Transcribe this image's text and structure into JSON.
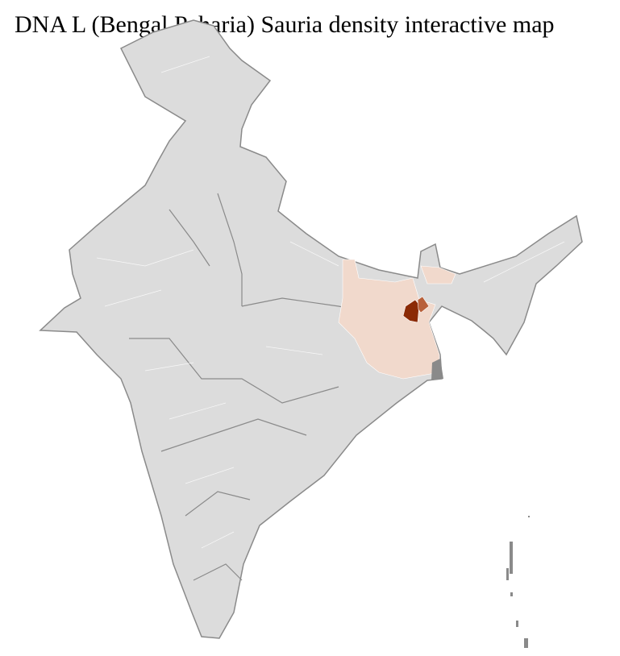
{
  "title": "DNA L (Bengal Paharia) Sauria density interactive map",
  "map": {
    "region": "India districts",
    "colors": {
      "base": "#dcdcdc",
      "state_border": "#8a8a8a",
      "district_border": "#ffffff",
      "low_density": "#f1d9cc",
      "mid_density": "#b8603a",
      "high_density": "#8b2a05",
      "no_data": "#8a8a8a"
    }
  }
}
